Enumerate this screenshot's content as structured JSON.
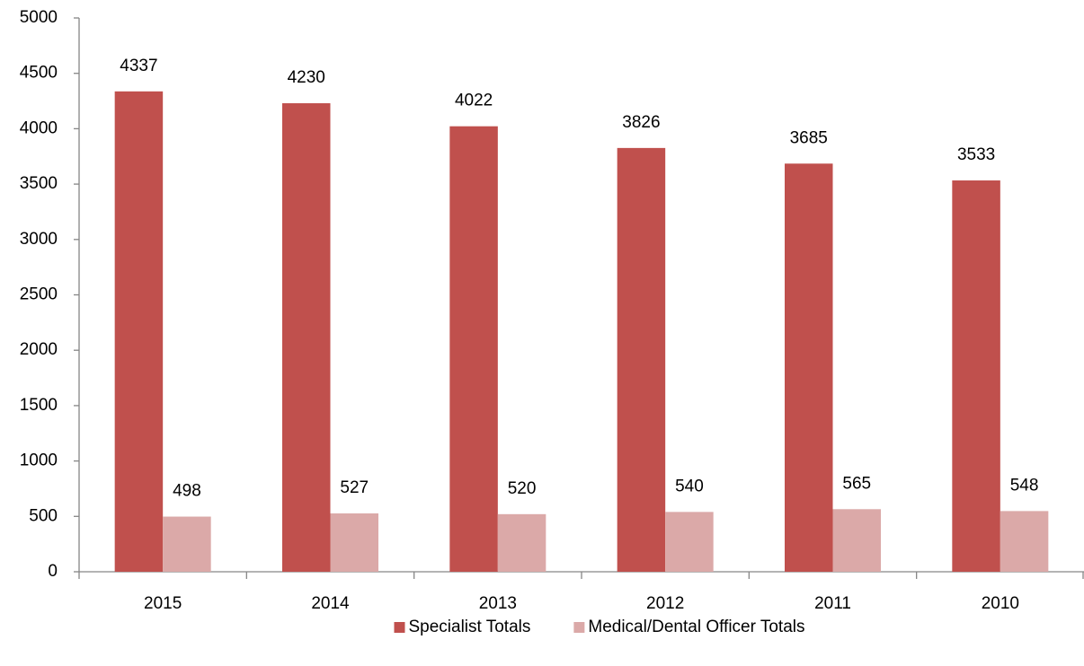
{
  "chart_data": {
    "type": "bar",
    "categories": [
      "2015",
      "2014",
      "2013",
      "2012",
      "2011",
      "2010"
    ],
    "series": [
      {
        "name": "Specialist Totals",
        "color": "#c0504d",
        "values": [
          4337,
          4230,
          4022,
          3826,
          3685,
          3533
        ]
      },
      {
        "name": "Medical/Dental Officer Totals",
        "color": "#dba9a8",
        "values": [
          498,
          527,
          520,
          540,
          565,
          548
        ]
      }
    ],
    "ylim": [
      0,
      5000
    ],
    "yticks": [
      0,
      500,
      1000,
      1500,
      2000,
      2500,
      3000,
      3500,
      4000,
      4500,
      5000
    ],
    "grid": false,
    "legend": "bottom"
  }
}
